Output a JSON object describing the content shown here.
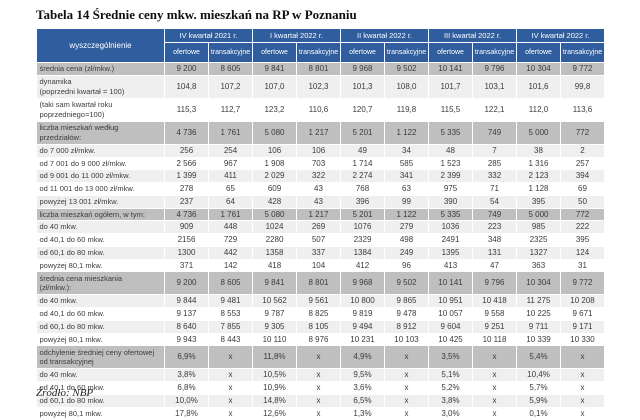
{
  "title": "Tabela 14 Średnie ceny mkw. mieszkań na RP w Poznaniu",
  "source": "Źródło: NBP",
  "colors": {
    "header_blue": "#2f5d9d",
    "section_gray": "#bfbfbf",
    "light_row": "#efefef",
    "white_row": "#ffffff"
  },
  "table": {
    "corner_label": "wyszczególnienie",
    "quarters": [
      "IV kwartał 2021 r.",
      "I kwartał 2022 r.",
      "II kwartał 2022 r.",
      "III kwartał 2022 r.",
      "IV kwartał 2022 r."
    ],
    "subheaders": [
      "ofertowe",
      "transakcyjne"
    ],
    "rows": [
      {
        "label": "średnia cena (zł/mkw.)",
        "shade": "section",
        "values": [
          "9 200",
          "8 605",
          "9 841",
          "8 801",
          "9 968",
          "9 502",
          "10 141",
          "9 796",
          "10 304",
          "9 772"
        ]
      },
      {
        "label": "dynamika\n(poprzedni kwartał = 100)",
        "shade": "light",
        "values": [
          "104,8",
          "107,2",
          "107,0",
          "102,3",
          "101,3",
          "108,0",
          "101,7",
          "103,1",
          "101,6",
          "99,8"
        ]
      },
      {
        "label": "(taki sam kwartał roku\npoprzedniego=100)",
        "shade": "white",
        "values": [
          "115,3",
          "112,7",
          "123,2",
          "110,6",
          "120,7",
          "119,8",
          "115,5",
          "122,1",
          "112,0",
          "113,6"
        ]
      },
      {
        "label": "liczba mieszkań według\nprzedziałów:",
        "shade": "section",
        "values": [
          "4 736",
          "1 761",
          "5 080",
          "1 217",
          "5 201",
          "1 122",
          "5 335",
          "749",
          "5 000",
          "772"
        ]
      },
      {
        "label": "do 7 000 zł/mkw.",
        "shade": "light",
        "values": [
          "256",
          "254",
          "106",
          "106",
          "49",
          "34",
          "48",
          "7",
          "38",
          "2"
        ]
      },
      {
        "label": "od 7 001 do 9 000 zł/mkw.",
        "shade": "white",
        "values": [
          "2 566",
          "967",
          "1 908",
          "703",
          "1 714",
          "585",
          "1 523",
          "285",
          "1 316",
          "257"
        ]
      },
      {
        "label": "od 9 001 do 11 000 zł/mkw.",
        "shade": "light",
        "values": [
          "1 399",
          "411",
          "2 029",
          "322",
          "2 274",
          "341",
          "2 399",
          "332",
          "2 123",
          "394"
        ]
      },
      {
        "label": "od 11 001 do 13 000 zł/mkw.",
        "shade": "white",
        "values": [
          "278",
          "65",
          "609",
          "43",
          "768",
          "63",
          "975",
          "71",
          "1 128",
          "69"
        ]
      },
      {
        "label": "powyżej 13 001 zł/mkw.",
        "shade": "light",
        "values": [
          "237",
          "64",
          "428",
          "43",
          "396",
          "99",
          "390",
          "54",
          "395",
          "50"
        ]
      },
      {
        "label": "liczba mieszkań ogółem, w tym:",
        "shade": "section",
        "values": [
          "4 736",
          "1 761",
          "5 080",
          "1 217",
          "5 201",
          "1 122",
          "5 335",
          "749",
          "5 000",
          "772"
        ]
      },
      {
        "label": "do 40 mkw.",
        "shade": "light",
        "values": [
          "909",
          "448",
          "1024",
          "269",
          "1076",
          "279",
          "1036",
          "223",
          "985",
          "222"
        ]
      },
      {
        "label": "od 40,1 do 60 mkw.",
        "shade": "white",
        "values": [
          "2156",
          "729",
          "2280",
          "507",
          "2329",
          "498",
          "2491",
          "348",
          "2325",
          "395"
        ]
      },
      {
        "label": "od 60,1 do 80 mkw.",
        "shade": "light",
        "values": [
          "1300",
          "442",
          "1358",
          "337",
          "1384",
          "249",
          "1395",
          "131",
          "1327",
          "124"
        ]
      },
      {
        "label": "powyżej 80,1 mkw.",
        "shade": "white",
        "values": [
          "371",
          "142",
          "418",
          "104",
          "412",
          "96",
          "413",
          "47",
          "363",
          "31"
        ]
      },
      {
        "label": "średnia cena mieszkania\n(zł/mkw.):",
        "shade": "section",
        "values": [
          "9 200",
          "8 605",
          "9 841",
          "8 801",
          "9 968",
          "9 502",
          "10 141",
          "9 796",
          "10 304",
          "9 772"
        ]
      },
      {
        "label": "do 40 mkw.",
        "shade": "light",
        "values": [
          "9 844",
          "9 481",
          "10 562",
          "9 561",
          "10 800",
          "9 865",
          "10 951",
          "10 418",
          "11 275",
          "10 208"
        ]
      },
      {
        "label": "od 40,1 do 60 mkw.",
        "shade": "white",
        "values": [
          "9 137",
          "8 553",
          "9 787",
          "8 825",
          "9 819",
          "9 478",
          "10 057",
          "9 558",
          "10 225",
          "9 671"
        ]
      },
      {
        "label": "od 60,1 do 80 mkw.",
        "shade": "light",
        "values": [
          "8 640",
          "7 855",
          "9 305",
          "8 105",
          "9 494",
          "8 912",
          "9 604",
          "9 251",
          "9 711",
          "9 171"
        ]
      },
      {
        "label": "powyżej 80,1 mkw.",
        "shade": "white",
        "values": [
          "9 943",
          "8 443",
          "10 110",
          "8 976",
          "10 231",
          "10 103",
          "10 425",
          "10 118",
          "10 339",
          "10 330"
        ]
      },
      {
        "label": "odchylenie średniej ceny ofertowej\nod transakcyjnej",
        "shade": "section",
        "values": [
          "6,9%",
          "x",
          "11,8%",
          "x",
          "4,9%",
          "x",
          "3,5%",
          "x",
          "5,4%",
          "x"
        ]
      },
      {
        "label": "do 40 mkw.",
        "shade": "light",
        "values": [
          "3,8%",
          "x",
          "10,5%",
          "x",
          "9,5%",
          "x",
          "5,1%",
          "x",
          "10,4%",
          "x"
        ]
      },
      {
        "label": "od 40,1 do 60 mkw.",
        "shade": "white",
        "values": [
          "6,8%",
          "x",
          "10,9%",
          "x",
          "3,6%",
          "x",
          "5,2%",
          "x",
          "5,7%",
          "x"
        ]
      },
      {
        "label": "od 60,1 do 80 mkw.",
        "shade": "light",
        "values": [
          "10,0%",
          "x",
          "14,8%",
          "x",
          "6,5%",
          "x",
          "3,8%",
          "x",
          "5,9%",
          "x"
        ]
      },
      {
        "label": "powyżej 80,1 mkw.",
        "shade": "white",
        "values": [
          "17,8%",
          "x",
          "12,6%",
          "x",
          "1,3%",
          "x",
          "3,0%",
          "x",
          "0,1%",
          "x"
        ]
      }
    ]
  }
}
